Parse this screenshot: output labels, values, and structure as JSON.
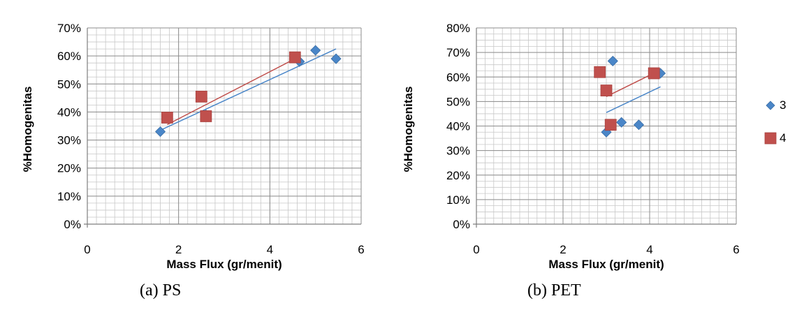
{
  "captions": {
    "left": "(a) PS",
    "right": "(b) PET"
  },
  "legend": [
    {
      "label": "3",
      "color": "#4a86c8",
      "marker": "diamond"
    },
    {
      "label": "4",
      "color": "#c0504d",
      "marker": "square"
    }
  ],
  "chart_data": [
    {
      "type": "scatter",
      "title": "",
      "xlabel": "Mass Flux (gr/menit)",
      "ylabel": "%Homogenitas",
      "xlim": [
        0,
        6
      ],
      "ylim": [
        0,
        0.7
      ],
      "xticks": [
        "0",
        "2",
        "4",
        "6"
      ],
      "yticks": [
        "0%",
        "10%",
        "20%",
        "30%",
        "40%",
        "50%",
        "60%",
        "70%"
      ],
      "grid": true,
      "series": [
        {
          "name": "3",
          "color": "#4a86c8",
          "marker": "diamond",
          "x": [
            1.6,
            2.6,
            4.65,
            5.0,
            5.45
          ],
          "y": [
            0.33,
            0.39,
            0.58,
            0.62,
            0.59
          ],
          "trendline": {
            "x": [
              1.6,
              5.45
            ],
            "y": [
              0.335,
              0.625
            ]
          }
        },
        {
          "name": "4",
          "color": "#c0504d",
          "marker": "square",
          "x": [
            1.75,
            2.5,
            2.6,
            4.55
          ],
          "y": [
            0.38,
            0.455,
            0.385,
            0.595
          ],
          "trendline": {
            "x": [
              1.75,
              4.55
            ],
            "y": [
              0.355,
              0.59
            ]
          }
        }
      ]
    },
    {
      "type": "scatter",
      "title": "",
      "xlabel": "Mass Flux (gr/menit)",
      "ylabel": "%Homogenitas",
      "xlim": [
        0,
        6
      ],
      "ylim": [
        0,
        0.8
      ],
      "xticks": [
        "0",
        "2",
        "4",
        "6"
      ],
      "yticks": [
        "0%",
        "10%",
        "20%",
        "30%",
        "40%",
        "50%",
        "60%",
        "70%",
        "80%"
      ],
      "grid": true,
      "series": [
        {
          "name": "3",
          "color": "#4a86c8",
          "marker": "diamond",
          "x": [
            3.0,
            3.15,
            3.35,
            3.75,
            4.25
          ],
          "y": [
            0.375,
            0.665,
            0.415,
            0.405,
            0.615
          ],
          "trendline": {
            "x": [
              3.0,
              4.25
            ],
            "y": [
              0.455,
              0.56
            ]
          }
        },
        {
          "name": "4",
          "color": "#c0504d",
          "marker": "square",
          "x": [
            2.85,
            3.0,
            3.1,
            4.1
          ],
          "y": [
            0.62,
            0.545,
            0.405,
            0.615
          ],
          "trendline": {
            "x": [
              3.0,
              4.15
            ],
            "y": [
              0.52,
              0.62
            ]
          }
        }
      ]
    }
  ]
}
